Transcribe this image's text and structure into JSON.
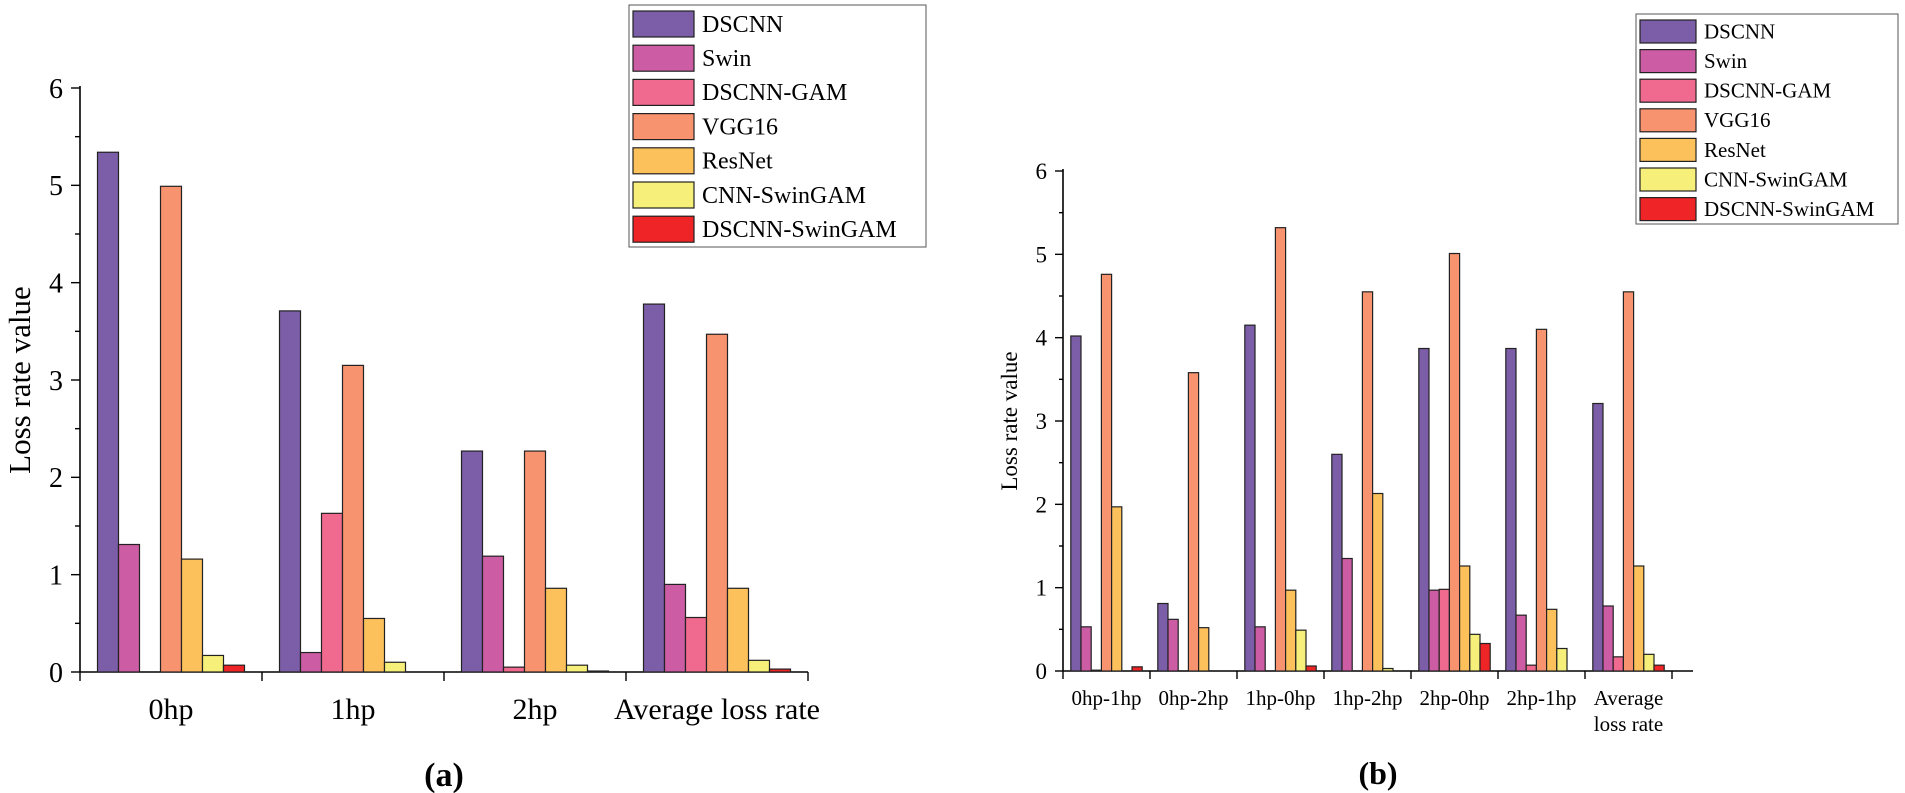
{
  "colors": {
    "DSCNN": "#7b5ea7",
    "Swin": "#cc5ca3",
    "DSCNN-GAM": "#f0698f",
    "VGG16": "#f8936f",
    "ResNet": "#fdc15b",
    "CNN-SwinGAM": "#f6f07a",
    "DSCNN-SwinGAM": "#ee2427"
  },
  "chart_data": [
    {
      "type": "bar",
      "panel_label": "(a)",
      "title": "",
      "xlabel": "",
      "ylabel": "Loss rate value",
      "ylim": [
        0,
        6
      ],
      "yticks": [
        "0",
        "1",
        "2",
        "3",
        "4",
        "5",
        "6"
      ],
      "legend_position": "top-right",
      "categories": [
        "0hp",
        "1hp",
        "2hp",
        "Average loss rate"
      ],
      "series": [
        {
          "name": "DSCNN",
          "values": [
            5.34,
            3.71,
            2.27,
            3.78
          ]
        },
        {
          "name": "Swin",
          "values": [
            1.31,
            0.2,
            1.19,
            0.9
          ]
        },
        {
          "name": "DSCNN-GAM",
          "values": [
            0.0,
            1.63,
            0.05,
            0.56
          ]
        },
        {
          "name": "VGG16",
          "values": [
            4.99,
            3.15,
            2.27,
            3.47
          ]
        },
        {
          "name": "ResNet",
          "values": [
            1.16,
            0.55,
            0.86,
            0.86
          ]
        },
        {
          "name": "CNN-SwinGAM",
          "values": [
            0.17,
            0.1,
            0.07,
            0.12
          ]
        },
        {
          "name": "DSCNN-SwinGAM",
          "values": [
            0.07,
            0.0,
            0.01,
            0.03
          ]
        }
      ]
    },
    {
      "type": "bar",
      "panel_label": "(b)",
      "title": "",
      "xlabel": "",
      "ylabel": "Loss rate value",
      "ylim": [
        0,
        6
      ],
      "yticks": [
        "0",
        "1",
        "2",
        "3",
        "4",
        "5",
        "6"
      ],
      "legend_position": "top-right",
      "categories": [
        "0hp-1hp",
        "0hp-2hp",
        "1hp-0hp",
        "1hp-2hp",
        "2hp-0hp",
        "2hp-1hp",
        "Average loss rate"
      ],
      "category_lines": [
        [
          "0hp-1hp"
        ],
        [
          "0hp-2hp"
        ],
        [
          "1hp-0hp"
        ],
        [
          "1hp-2hp"
        ],
        [
          "2hp-0hp"
        ],
        [
          "2hp-1hp"
        ],
        [
          "Average",
          "loss rate"
        ]
      ],
      "series": [
        {
          "name": "DSCNN",
          "values": [
            4.02,
            0.81,
            4.15,
            2.6,
            3.87,
            3.87,
            3.21
          ]
        },
        {
          "name": "Swin",
          "values": [
            0.53,
            0.62,
            0.53,
            1.35,
            0.97,
            0.67,
            0.78
          ]
        },
        {
          "name": "DSCNN-GAM",
          "values": [
            0.01,
            0.0,
            0.0,
            0.0,
            0.98,
            0.07,
            0.17
          ]
        },
        {
          "name": "VGG16",
          "values": [
            4.76,
            3.58,
            5.32,
            4.55,
            5.01,
            4.1,
            4.55
          ]
        },
        {
          "name": "ResNet",
          "values": [
            1.97,
            0.52,
            0.97,
            2.13,
            1.26,
            0.74,
            1.26
          ]
        },
        {
          "name": "CNN-SwinGAM",
          "values": [
            0.0,
            0.0,
            0.49,
            0.03,
            0.44,
            0.27,
            0.2
          ]
        },
        {
          "name": "DSCNN-SwinGAM",
          "values": [
            0.05,
            0.0,
            0.06,
            0.0,
            0.33,
            0.0,
            0.07
          ]
        }
      ]
    }
  ]
}
